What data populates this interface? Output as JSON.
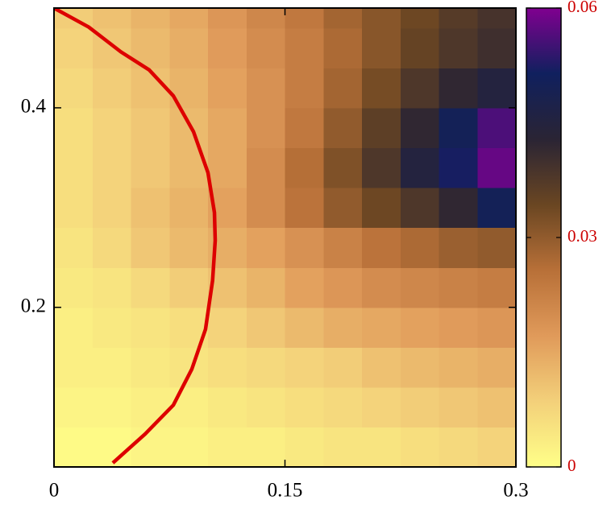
{
  "chart_data": {
    "type": "heatmap",
    "x": [
      0.0125,
      0.0375,
      0.0625,
      0.0875,
      0.1125,
      0.1375,
      0.1625,
      0.1875,
      0.2125,
      0.2375,
      0.2625,
      0.2875
    ],
    "y": [
      0.06,
      0.1,
      0.14,
      0.18,
      0.22,
      0.26,
      0.3,
      0.34,
      0.38,
      0.42,
      0.46,
      0.5
    ],
    "z": [
      [
        0.001,
        0.001,
        0.002,
        0.002,
        0.003,
        0.003,
        0.004,
        0.005,
        0.005,
        0.006,
        0.007,
        0.008
      ],
      [
        0.002,
        0.002,
        0.003,
        0.003,
        0.004,
        0.005,
        0.006,
        0.007,
        0.008,
        0.009,
        0.01,
        0.011
      ],
      [
        0.003,
        0.003,
        0.004,
        0.005,
        0.006,
        0.007,
        0.008,
        0.009,
        0.011,
        0.012,
        0.013,
        0.014
      ],
      [
        0.003,
        0.004,
        0.005,
        0.006,
        0.008,
        0.01,
        0.012,
        0.014,
        0.015,
        0.016,
        0.017,
        0.018
      ],
      [
        0.004,
        0.005,
        0.007,
        0.009,
        0.011,
        0.013,
        0.016,
        0.018,
        0.02,
        0.021,
        0.022,
        0.023
      ],
      [
        0.005,
        0.007,
        0.01,
        0.012,
        0.014,
        0.016,
        0.019,
        0.022,
        0.025,
        0.027,
        0.029,
        0.03
      ],
      [
        0.006,
        0.008,
        0.011,
        0.013,
        0.016,
        0.02,
        0.025,
        0.03,
        0.034,
        0.038,
        0.042,
        0.05
      ],
      [
        0.006,
        0.008,
        0.01,
        0.012,
        0.015,
        0.02,
        0.026,
        0.032,
        0.038,
        0.045,
        0.052,
        0.058
      ],
      [
        0.006,
        0.008,
        0.01,
        0.012,
        0.015,
        0.019,
        0.024,
        0.03,
        0.036,
        0.042,
        0.05,
        0.056
      ],
      [
        0.007,
        0.009,
        0.011,
        0.013,
        0.016,
        0.019,
        0.023,
        0.028,
        0.033,
        0.038,
        0.042,
        0.045
      ],
      [
        0.008,
        0.01,
        0.012,
        0.014,
        0.017,
        0.02,
        0.023,
        0.027,
        0.031,
        0.035,
        0.038,
        0.04
      ],
      [
        0.009,
        0.011,
        0.013,
        0.015,
        0.018,
        0.021,
        0.024,
        0.028,
        0.031,
        0.034,
        0.037,
        0.039
      ]
    ],
    "zlim": [
      0,
      0.06
    ],
    "zticks": [
      0,
      0.03,
      0.06
    ],
    "colorscale": [
      "#ffff88",
      "#f3d07a",
      "#e09a5a",
      "#b87038",
      "#6a4622",
      "#2a2434",
      "#10205e",
      "#800090"
    ],
    "xlim": [
      0,
      0.3
    ],
    "xticks": [
      0,
      0.15,
      0.3
    ],
    "ylim": [
      0.04,
      0.5
    ],
    "yticks": [
      0.2,
      0.4
    ],
    "lines": [
      {
        "color": "#dd0000",
        "x": [
          0,
          0.0225,
          0.0435,
          0.0618,
          0.0775,
          0.0906,
          0.1,
          0.1042,
          0.1047,
          0.103,
          0.0984,
          0.0895,
          0.0775,
          0.0592,
          0.0382
        ],
        "y": [
          0.5,
          0.481,
          0.456,
          0.438,
          0.412,
          0.376,
          0.335,
          0.295,
          0.267,
          0.227,
          0.178,
          0.138,
          0.102,
          0.073,
          0.044
        ]
      }
    ]
  }
}
